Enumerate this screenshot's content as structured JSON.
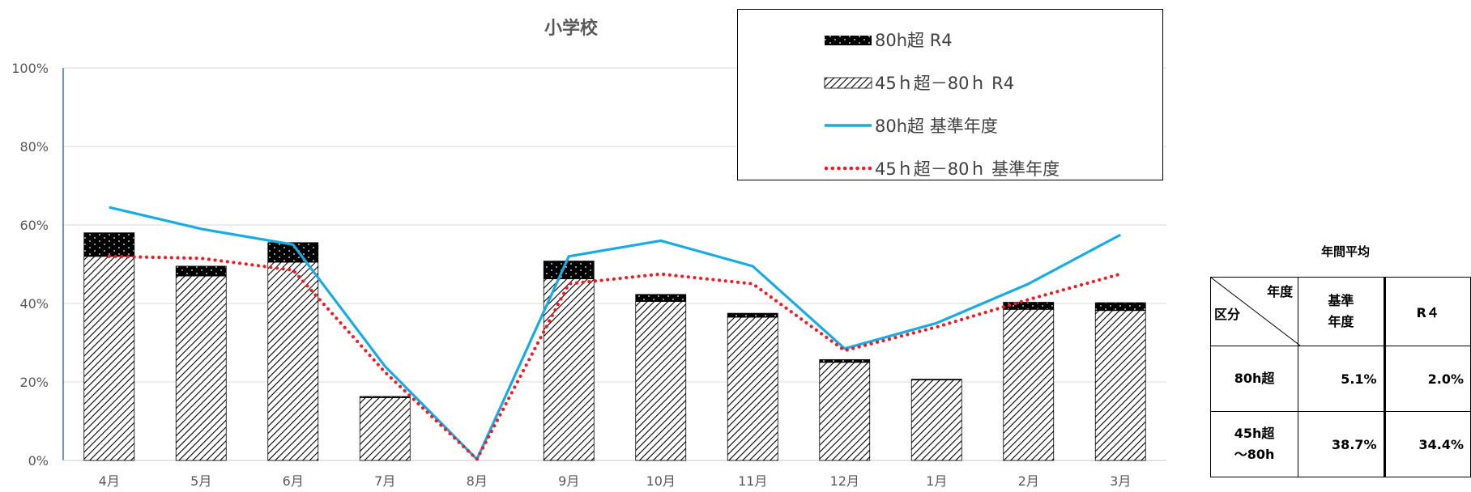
{
  "chart_data": {
    "type": "bar",
    "title": "小学校",
    "categories": [
      "4月",
      "5月",
      "6月",
      "7月",
      "8月",
      "9月",
      "10月",
      "11月",
      "12月",
      "1月",
      "2月",
      "3月"
    ],
    "ylim": [
      0,
      100
    ],
    "yticks": [
      "0%",
      "20%",
      "40%",
      "60%",
      "80%",
      "100%"
    ],
    "grid": true,
    "legend_position": "top-right",
    "series": [
      {
        "name": "80h超 R4",
        "kind": "stacked-bar-top",
        "values": [
          6,
          2.5,
          5,
          0.3,
          0,
          4.5,
          1.8,
          1,
          0.7,
          0.2,
          1.8,
          2
        ]
      },
      {
        "name": "45ｈ超－80ｈ R4",
        "kind": "stacked-bar-bottom",
        "values": [
          52,
          47,
          50.5,
          16,
          0,
          46.3,
          40.5,
          36.5,
          25,
          20.5,
          38.5,
          38.2
        ]
      },
      {
        "name": "80h超 基準年度",
        "kind": "line",
        "values": [
          64.5,
          59,
          55,
          24,
          0.3,
          52,
          56,
          49.5,
          28.5,
          35,
          45,
          57.5
        ]
      },
      {
        "name": "45ｈ超－80ｈ 基準年度",
        "kind": "dotted-line",
        "values": [
          52,
          51.5,
          48.5,
          22.5,
          0.3,
          45,
          47.5,
          45,
          28,
          34,
          41,
          47.5
        ]
      }
    ],
    "colors": {
      "line_base80": "#1aabe3",
      "line_base45": "#ee1c24",
      "bar_top": "#000000",
      "bar_hatch": "#000000",
      "grid": "#d9d9d9",
      "axis": "#3c6fc0"
    }
  },
  "legend": [
    {
      "label": "80h超 R4",
      "swatch": "dotted-black"
    },
    {
      "label": "45ｈ超－80ｈ R4",
      "swatch": "hatched"
    },
    {
      "label": "80h超 基準年度",
      "swatch": "blue-line"
    },
    {
      "label": "45ｈ超－80ｈ 基準年度",
      "swatch": "red-dotted-line"
    }
  ],
  "annual": {
    "title": "年間平均",
    "corner_top": "年度",
    "corner_bottom": "区分",
    "col_base_line1": "基準",
    "col_base_line2": "年度",
    "col_r4": "R４",
    "rows": [
      {
        "label_line1": "80h超",
        "label_line2": "",
        "base": "5.1%",
        "r4": "2.0%"
      },
      {
        "label_line1": "45h超",
        "label_line2": "～80h",
        "base": "38.7%",
        "r4": "34.4%"
      }
    ]
  }
}
